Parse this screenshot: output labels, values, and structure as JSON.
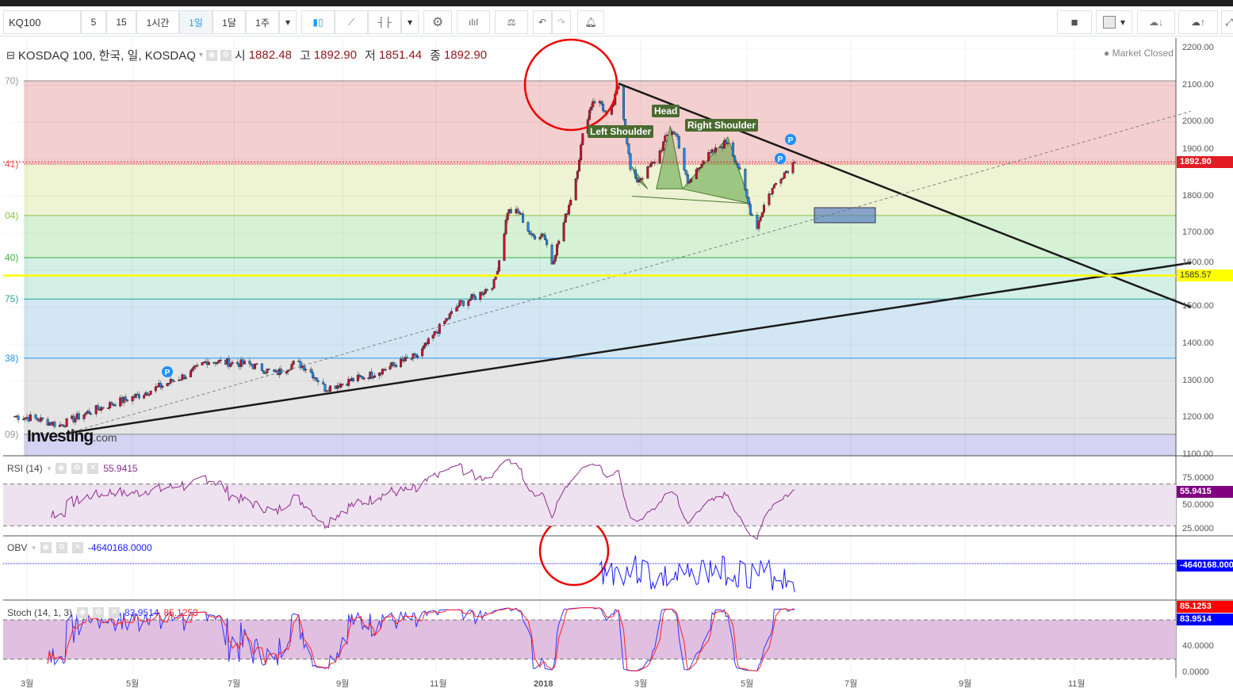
{
  "toolbar": {
    "symbol": "KQ100",
    "intervals": [
      "5",
      "15",
      "1시간",
      "1일",
      "1달",
      "1주"
    ],
    "active_interval": "1일"
  },
  "header": {
    "title": "KOSDAQ 100, 한국, 일, KOSDAQ",
    "open_label": "시",
    "open": "1882.48",
    "high_label": "고",
    "high": "1892.90",
    "low_label": "저",
    "low": "1851.44",
    "close_label": "종",
    "close": "1892.90",
    "market_status": "● Market Closed"
  },
  "colors": {
    "up": "#c8102e",
    "down": "#1e88e5",
    "rsi": "#8e2a8e",
    "obv": "#1a1aff",
    "stoch_k": "#3333ff",
    "stoch_d": "#ff2222",
    "hline": "#ffff00"
  },
  "chart_data": {
    "type": "candlestick",
    "price_axis": {
      "ticks": [
        "2200.00",
        "2100.00",
        "2000.00",
        "1900.00",
        "1800.00",
        "1700.00",
        "1600.00",
        "1500.00",
        "1400.00",
        "1300.00",
        "1200.00",
        "1100.00"
      ],
      "range": [
        1100,
        2200
      ]
    },
    "time_axis": {
      "ticks": [
        "3월",
        "5월",
        "7월",
        "9월",
        "11월",
        "2018",
        "3월",
        "5월",
        "7월",
        "9월",
        "11월"
      ]
    },
    "last_price": "1892.90",
    "horizontal_line": "1585.57",
    "fib_labels": [
      "70)",
      "41)",
      "04)",
      "40)",
      "75)",
      "38)",
      "09)"
    ],
    "fib_levels": [
      2112,
      1887,
      1748,
      1634,
      1522,
      1362,
      1156
    ],
    "close_keypoints": [
      [
        "2017-02-22",
        1205
      ],
      [
        "2017-03-05",
        1200
      ],
      [
        "2017-03-20",
        1180
      ],
      [
        "2017-04-05",
        1215
      ],
      [
        "2017-04-20",
        1240
      ],
      [
        "2017-05-05",
        1262
      ],
      [
        "2017-05-20",
        1290
      ],
      [
        "2017-06-05",
        1322
      ],
      [
        "2017-06-15",
        1355
      ],
      [
        "2017-06-28",
        1350
      ],
      [
        "2017-07-10",
        1345
      ],
      [
        "2017-07-25",
        1320
      ],
      [
        "2017-08-05",
        1350
      ],
      [
        "2017-08-12",
        1335
      ],
      [
        "2017-08-22",
        1280
      ],
      [
        "2017-09-05",
        1300
      ],
      [
        "2017-09-20",
        1318
      ],
      [
        "2017-10-05",
        1345
      ],
      [
        "2017-10-20",
        1368
      ],
      [
        "2017-10-28",
        1410
      ],
      [
        "2017-11-05",
        1455
      ],
      [
        "2017-11-15",
        1510
      ],
      [
        "2017-11-25",
        1530
      ],
      [
        "2017-12-05",
        1565
      ],
      [
        "2017-12-09",
        1650
      ],
      [
        "2017-12-13",
        1760
      ],
      [
        "2017-12-20",
        1755
      ],
      [
        "2017-12-27",
        1690
      ],
      [
        "2018-01-03",
        1700
      ],
      [
        "2018-01-08",
        1620
      ],
      [
        "2018-01-12",
        1680
      ],
      [
        "2018-01-17",
        1760
      ],
      [
        "2018-01-22",
        1850
      ],
      [
        "2018-01-27",
        1990
      ],
      [
        "2018-02-01",
        2060
      ],
      [
        "2018-02-06",
        2050
      ],
      [
        "2018-02-10",
        2000
      ],
      [
        "2018-02-16",
        2100
      ],
      [
        "2018-02-20",
        1990
      ],
      [
        "2018-02-24",
        1830
      ],
      [
        "2018-03-03",
        1860
      ],
      [
        "2018-03-10",
        1900
      ],
      [
        "2018-03-18",
        1985
      ],
      [
        "2018-03-22",
        1960
      ],
      [
        "2018-03-28",
        1830
      ],
      [
        "2018-04-05",
        1895
      ],
      [
        "2018-04-12",
        1920
      ],
      [
        "2018-04-20",
        1950
      ],
      [
        "2018-04-26",
        1880
      ],
      [
        "2018-05-03",
        1760
      ],
      [
        "2018-05-07",
        1720
      ],
      [
        "2018-05-12",
        1790
      ],
      [
        "2018-05-20",
        1850
      ],
      [
        "2018-05-29",
        1892.9
      ]
    ],
    "trendlines": [
      {
        "from": [
          "2018-02-16",
          2105
        ],
        "to": [
          "2019-01-05",
          1500
        ]
      },
      {
        "from": [
          "2017-03-25",
          1160
        ],
        "to": [
          "2019-01-05",
          1620
        ]
      }
    ],
    "dashed_trendline": {
      "from": [
        "2017-03-25",
        1160
      ],
      "to": [
        "2019-01-05",
        2030
      ]
    },
    "pattern_labels": {
      "left": "Left Shoulder",
      "head": "Head",
      "right": "Right Shoulder"
    },
    "pivot_marker": "P"
  },
  "indicators": {
    "rsi": {
      "label": "RSI (14)",
      "value": "55.9415",
      "ticks": [
        "75.0000",
        "50.0000",
        "25.0000"
      ]
    },
    "obv": {
      "label": "OBV",
      "value": "-4640168.0000",
      "tag": "-4640168.000"
    },
    "stoch": {
      "label": "Stoch (14, 1, 3)",
      "k": "83.9514",
      "d": "85.1253",
      "ticks": [
        "40.0000",
        "0.0000"
      ]
    }
  },
  "watermark": {
    "brand": "Investing",
    "suffix": ".com"
  }
}
